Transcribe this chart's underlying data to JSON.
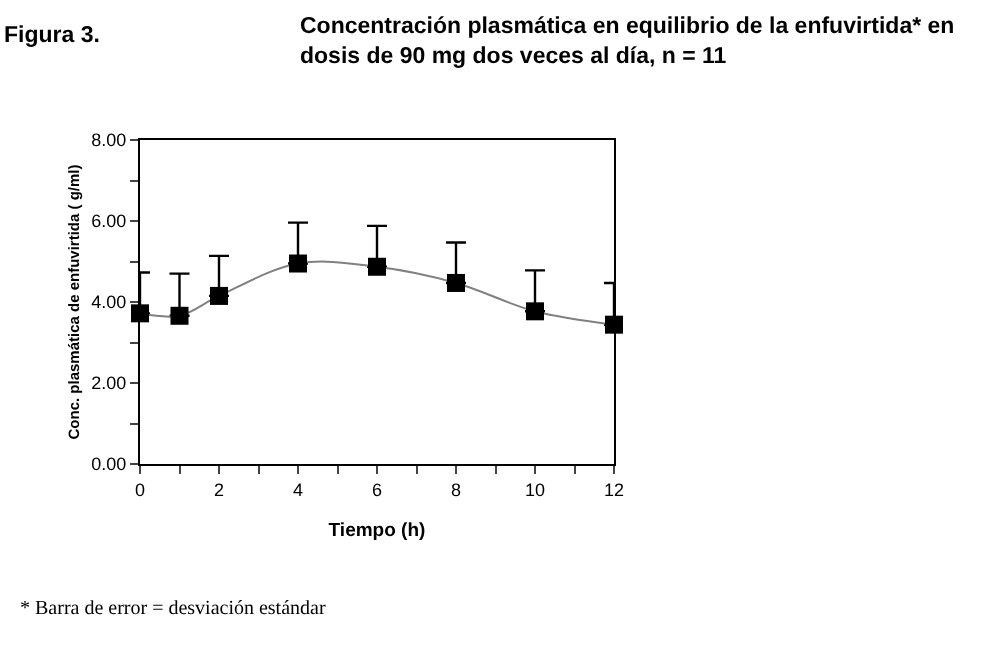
{
  "chart_data": {
    "type": "line",
    "title": "Concentración plasmática en equilibrio de la enfuvirtida* en dosis de 90 mg dos veces al día, n = 11",
    "xlabel": "Tiempo (h)",
    "ylabel": "Conc. plasmática de enfuvirtida ( g/ml)",
    "annotations": [
      "Figura 3.",
      "* Barra de error = desviación estándar"
    ],
    "x": [
      0,
      1,
      2,
      4,
      6,
      8,
      10,
      12
    ],
    "series": [
      {
        "color": "#000000",
        "values": [
          3.72,
          3.66,
          4.15,
          4.95,
          4.87,
          4.47,
          3.77,
          3.44
        ],
        "errors": [
          [
            3.72,
            4.73
          ],
          [
            3.66,
            4.7
          ],
          [
            4.15,
            5.14
          ],
          [
            4.95,
            5.96
          ],
          [
            4.87,
            5.88
          ],
          [
            4.47,
            5.47
          ],
          [
            3.77,
            4.78
          ],
          [
            3.44,
            4.47
          ]
        ]
      }
    ],
    "xlim": [
      0,
      12
    ],
    "xticks": [
      0,
      {
        "value": 1,
        "label": null
      },
      2,
      {
        "value": 3,
        "label": null
      },
      4,
      {
        "value": 5,
        "label": null
      },
      6,
      {
        "value": 7,
        "label": null
      },
      8,
      {
        "value": 9,
        "label": null
      },
      10,
      {
        "value": 11,
        "label": null
      },
      12
    ],
    "ylim": [
      0,
      8
    ],
    "yticks": [
      {
        "value": 0,
        "label": "0.00"
      },
      {
        "value": 1,
        "label": null
      },
      {
        "value": 2,
        "label": "2.00"
      },
      {
        "value": 3,
        "label": null
      },
      {
        "value": 4,
        "label": "4.00"
      },
      {
        "value": 5,
        "label": null
      },
      {
        "value": 6,
        "label": "6.00"
      },
      {
        "value": 7,
        "label": null
      },
      {
        "value": 8,
        "label": "8.00"
      }
    ],
    "marker": "square",
    "line_style": "solid",
    "legend": false
  }
}
